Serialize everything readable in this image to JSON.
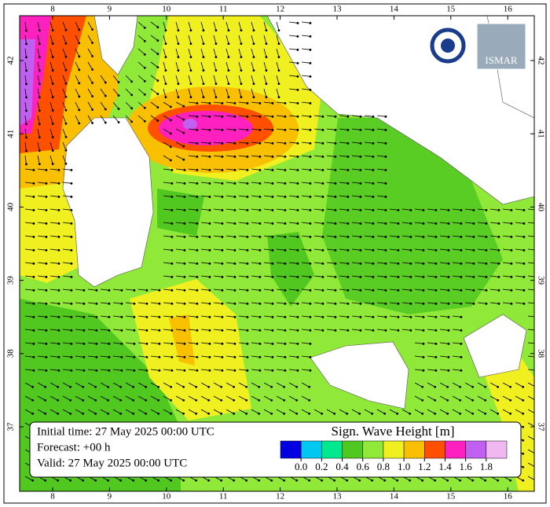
{
  "lon_ticks": [
    8,
    9,
    10,
    11,
    12,
    13,
    14,
    15,
    16
  ],
  "lat_ticks": [
    37,
    38,
    39,
    40,
    41,
    42
  ],
  "info": {
    "initial_time": "Initial time: 27 May 2025 00:00 UTC",
    "forecast": "Forecast: +00 h",
    "valid": "Valid: 27 May 2025 00:00 UTC"
  },
  "legend": {
    "title": "Sign. Wave Height [m]",
    "colors": [
      "#0000e0",
      "#00c8f0",
      "#00e890",
      "#50c820",
      "#90e838",
      "#f0f020",
      "#f8c000",
      "#ff5000",
      "#ff20c0",
      "#c060f0",
      "#f0b8f0"
    ],
    "ticks": [
      {
        "value": 0,
        "label": "0.0"
      },
      {
        "value": 0.2,
        "label": "0.2"
      },
      {
        "value": 0.4,
        "label": "0.4"
      },
      {
        "value": 0.6,
        "label": "0.6"
      },
      {
        "value": 0.8,
        "label": "0.8"
      },
      {
        "value": 1.0,
        "label": "1.0"
      },
      {
        "value": 1.2,
        "label": "1.2"
      },
      {
        "value": 1.4,
        "label": "1.4"
      },
      {
        "value": 1.6,
        "label": "1.6"
      },
      {
        "value": 1.8,
        "label": "1.8"
      }
    ]
  },
  "logo": {
    "text": "ISMAR"
  }
}
